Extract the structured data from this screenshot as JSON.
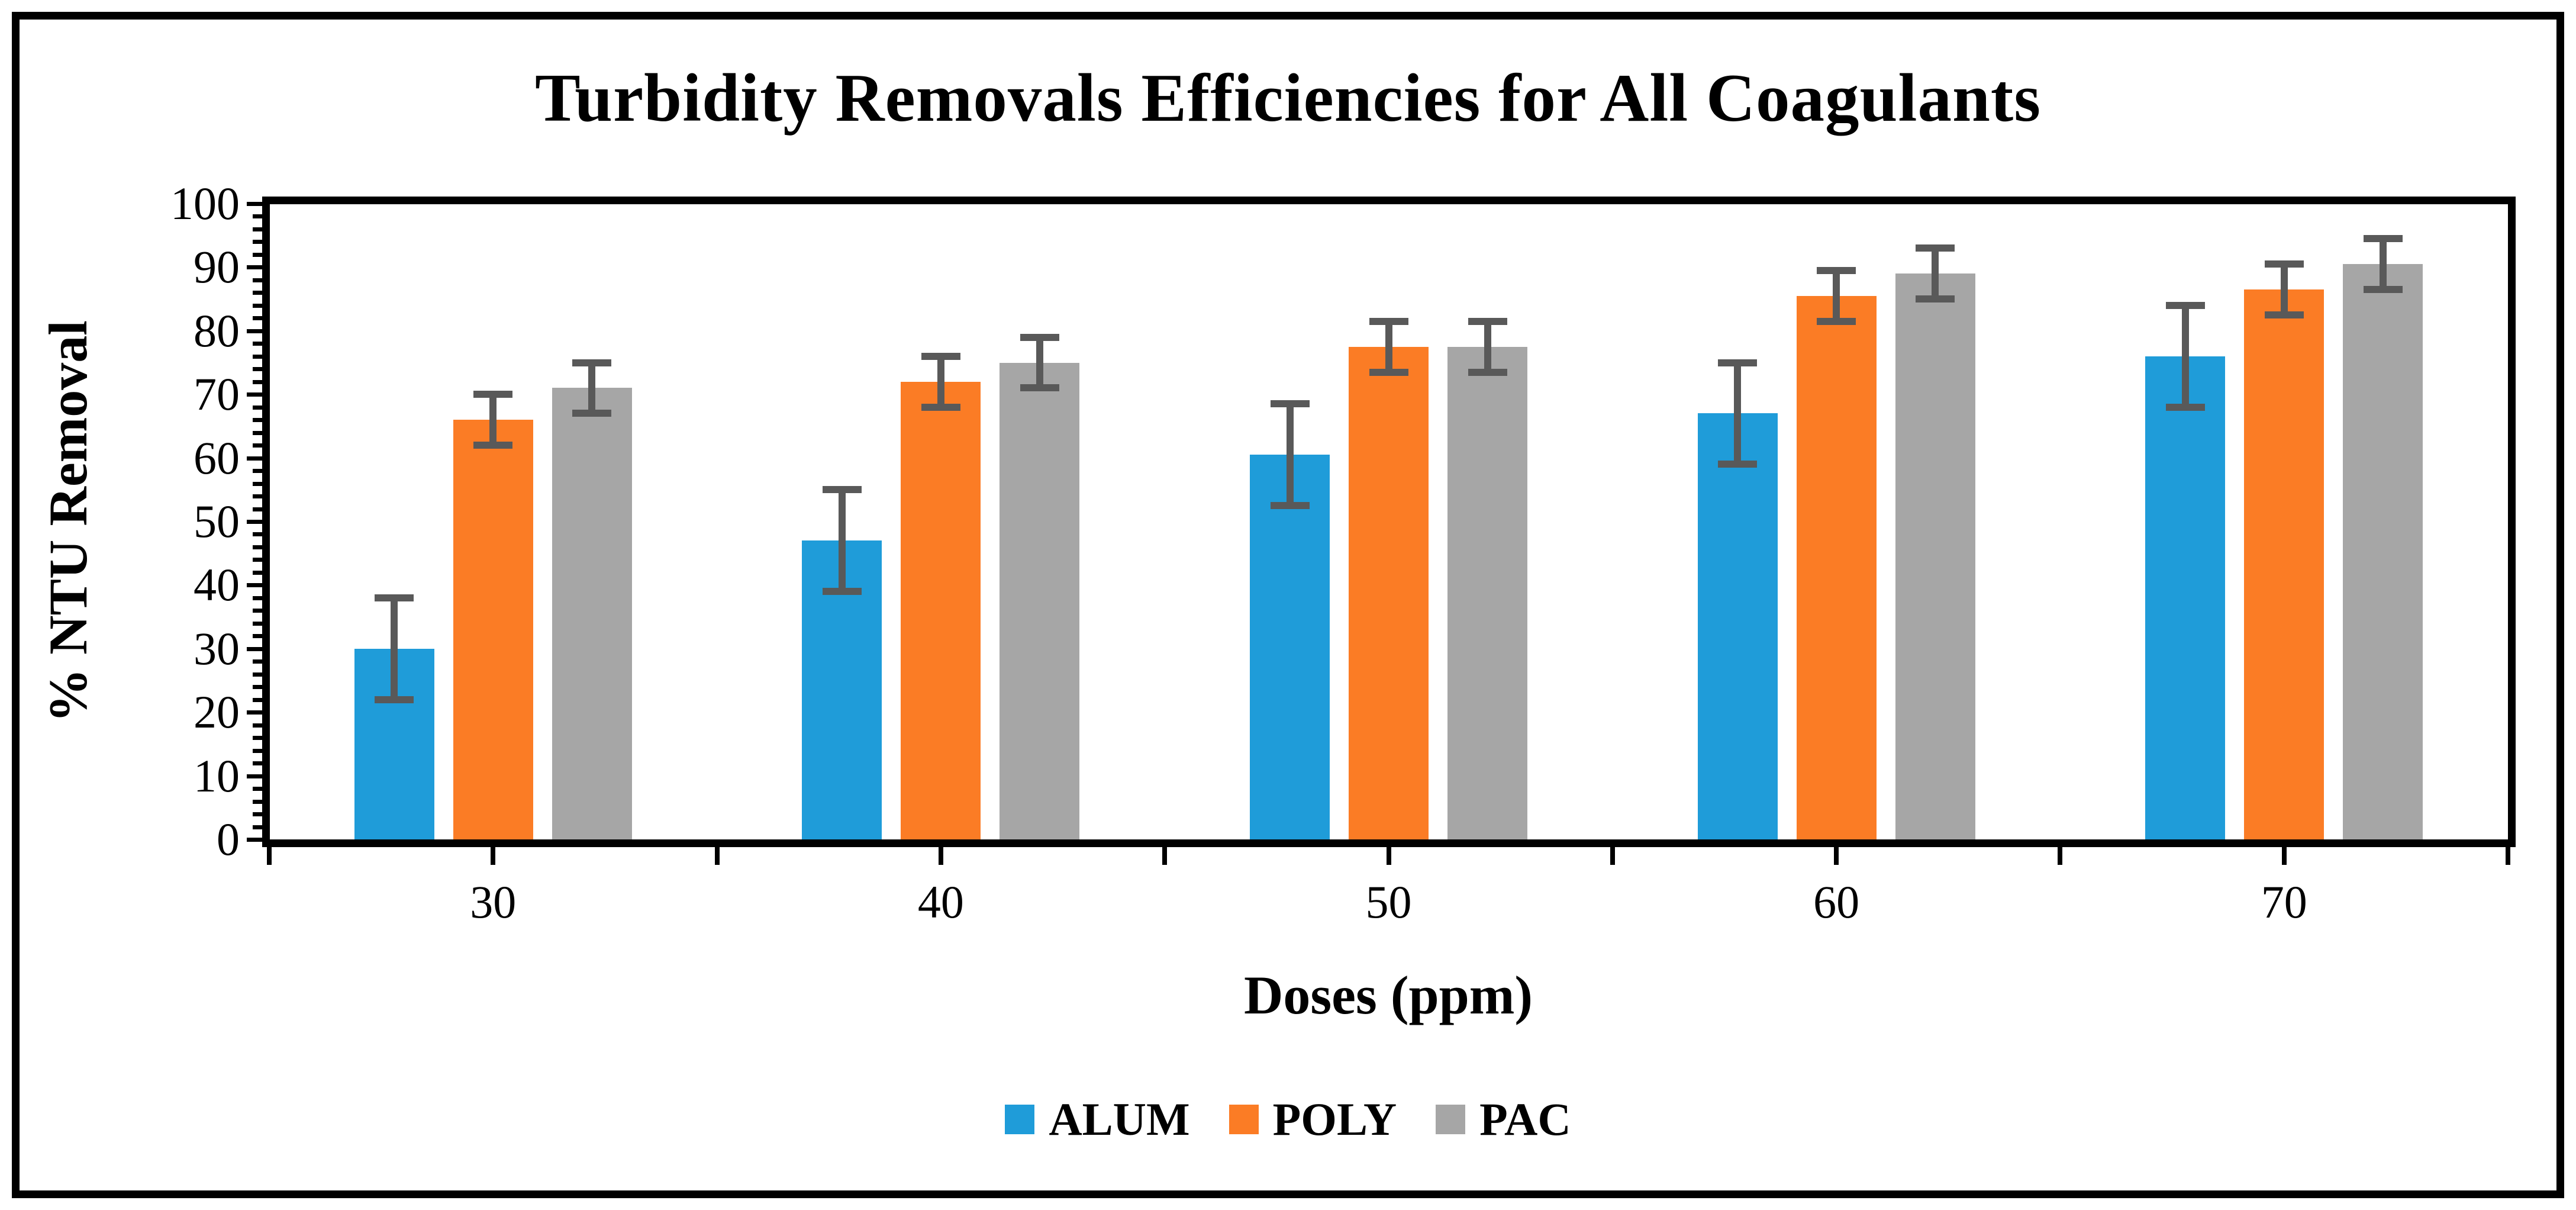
{
  "chart_data": {
    "type": "bar",
    "title": "Turbidity Removals Efficiencies for All Coagulants",
    "xlabel": "Doses (ppm)",
    "ylabel": "% NTU Removal",
    "categories": [
      "30",
      "40",
      "50",
      "60",
      "70"
    ],
    "series": [
      {
        "name": "ALUM",
        "color": "#1F9CD9",
        "values": [
          30,
          47,
          60.5,
          67,
          76
        ],
        "errors": [
          8,
          8,
          8,
          8,
          8
        ]
      },
      {
        "name": "POLY",
        "color": "#FB7C25",
        "values": [
          66,
          72,
          77.5,
          85.5,
          86.5
        ],
        "errors": [
          4,
          4,
          4,
          4,
          4
        ]
      },
      {
        "name": "PAC",
        "color": "#A6A6A6",
        "values": [
          71,
          75,
          77.5,
          89,
          90.5
        ],
        "errors": [
          4,
          4,
          4,
          4,
          4
        ]
      }
    ],
    "ylim": [
      0,
      100
    ],
    "y_major_step": 10,
    "y_minor_step": 2,
    "grid": "off",
    "legend_position": "bottom",
    "error_bar_color": "#595959",
    "axis_color": "#000000"
  }
}
